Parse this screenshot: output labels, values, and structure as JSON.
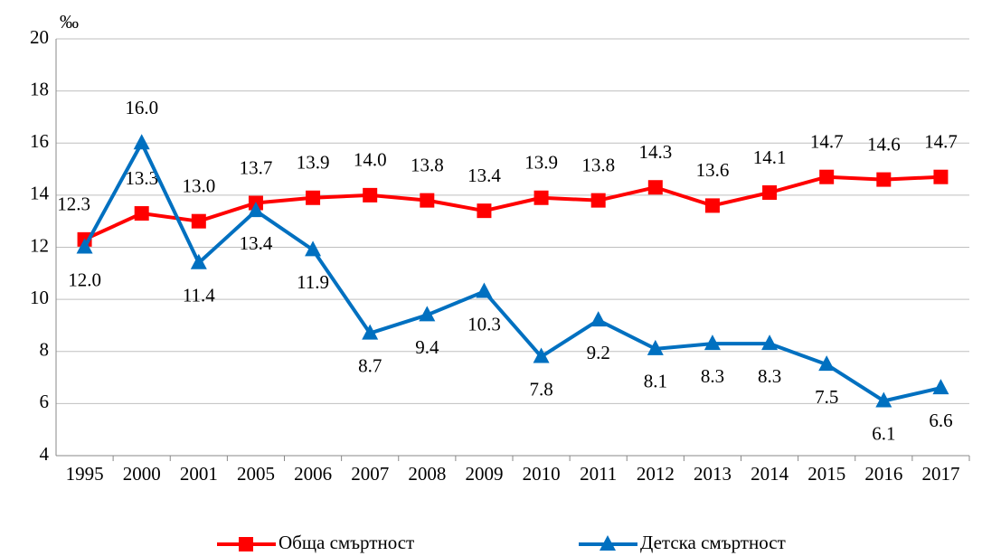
{
  "chart_data": {
    "type": "line",
    "y_label": "‰",
    "categories": [
      "1995",
      "2000",
      "2001",
      "2005",
      "2006",
      "2007",
      "2008",
      "2009",
      "2010",
      "2011",
      "2012",
      "2013",
      "2014",
      "2015",
      "2016",
      "2017"
    ],
    "series": [
      {
        "name": "Обща смъртност",
        "color": "#ff0000",
        "marker": "square",
        "values": [
          12.3,
          13.3,
          13.0,
          13.7,
          13.9,
          14.0,
          13.8,
          13.4,
          13.9,
          13.8,
          14.3,
          13.6,
          14.1,
          14.7,
          14.6,
          14.7
        ],
        "value_labels": [
          "12.3",
          "13.3",
          "13.0",
          "13.7",
          "13.9",
          "14.0",
          "13.8",
          "13.4",
          "13.9",
          "13.8",
          "14.3",
          "13.6",
          "14.1",
          "14.7",
          "14.6",
          "14.7"
        ]
      },
      {
        "name": "Детска смъртност",
        "color": "#0070c0",
        "marker": "triangle",
        "values": [
          12.0,
          16.0,
          11.4,
          13.4,
          11.9,
          8.7,
          9.4,
          10.3,
          7.8,
          9.2,
          8.1,
          8.3,
          8.3,
          7.5,
          6.1,
          6.6
        ],
        "value_labels": [
          "12.0",
          "16.0",
          "11.4",
          "13.4",
          "11.9",
          "8.7",
          "9.4",
          "10.3",
          "7.8",
          "9.2",
          "8.1",
          "8.3",
          "8.3",
          "7.5",
          "6.1",
          "6.6"
        ]
      }
    ],
    "ylim": [
      4,
      20
    ],
    "yticks": [
      4,
      6,
      8,
      10,
      12,
      14,
      16,
      18,
      20
    ],
    "grid": true
  }
}
